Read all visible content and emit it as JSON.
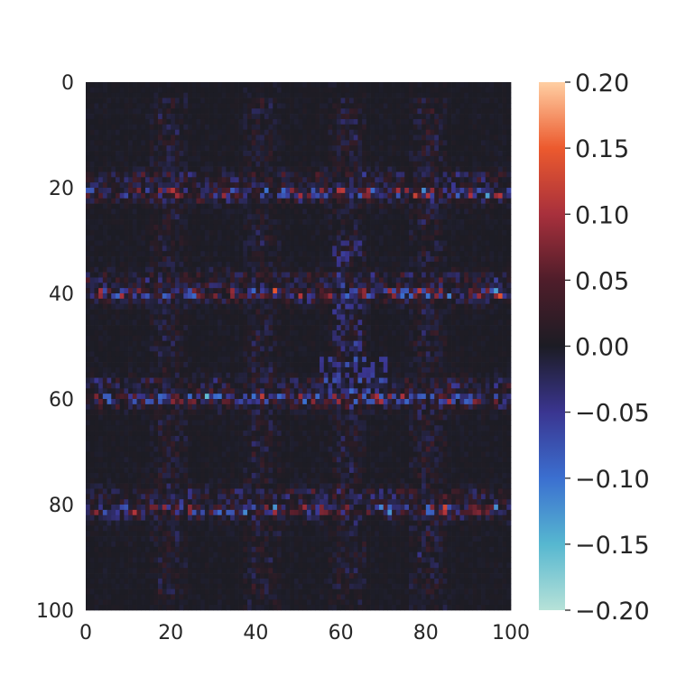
{
  "chart_data": {
    "type": "heatmap",
    "title": "",
    "xlabel": "",
    "ylabel": "",
    "xlim": [
      0,
      100
    ],
    "ylim": [
      100,
      0
    ],
    "x_ticks": [
      "0",
      "20",
      "40",
      "60",
      "80",
      "100"
    ],
    "y_ticks": [
      "0",
      "20",
      "40",
      "60",
      "80",
      "100"
    ],
    "colorbar": {
      "range": [
        -0.2,
        0.2
      ],
      "ticks": [
        "0.20",
        "0.15",
        "0.10",
        "0.05",
        "0.00",
        "−0.05",
        "−0.10",
        "−0.15",
        "−0.20"
      ],
      "colormap": "icefire",
      "stops": [
        "#b7e2d8",
        "#56b7d0",
        "#3b6fd0",
        "#3a3590",
        "#1c1c24",
        "#4f1d2a",
        "#a8303c",
        "#ec5a2e",
        "#ffcfa3"
      ]
    },
    "grid": {
      "rows": 100,
      "cols": 100,
      "background_value": 0.0,
      "strong_bands_rows": [
        20,
        39,
        59,
        80
      ],
      "band_row_extents": [
        [
          17,
          22
        ],
        [
          36,
          41
        ],
        [
          56,
          61
        ],
        [
          77,
          82
        ]
      ],
      "vertical_band_cols": [
        19,
        41,
        61,
        80
      ],
      "note_pattern_colors": "alternating red/orange (positive) and blue/cyan (negative) speckle along horizontal bands; dark near zero elsewhere"
    }
  }
}
